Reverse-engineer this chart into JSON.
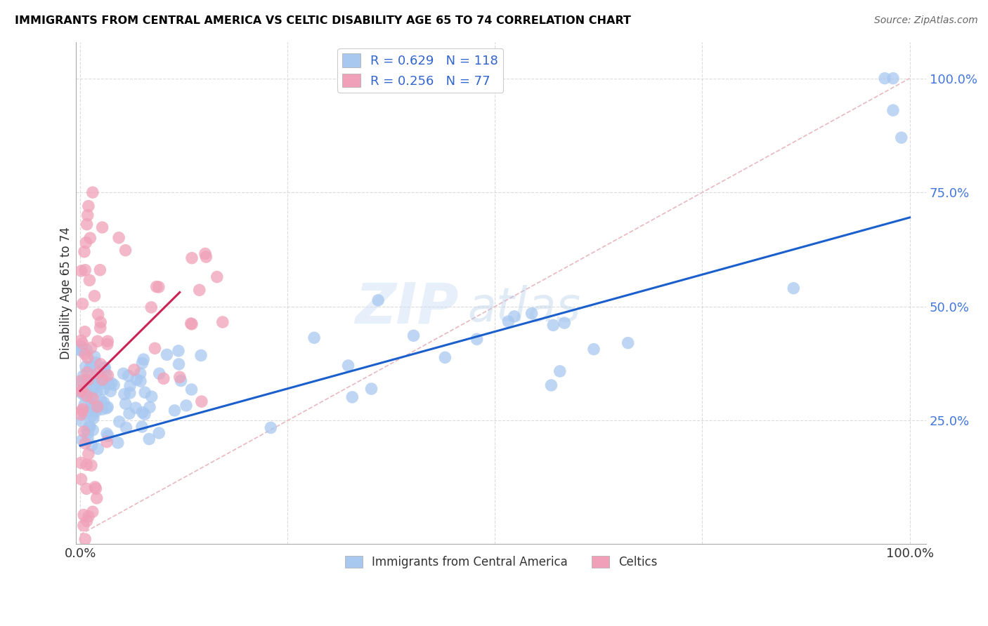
{
  "title": "IMMIGRANTS FROM CENTRAL AMERICA VS CELTIC DISABILITY AGE 65 TO 74 CORRELATION CHART",
  "source": "Source: ZipAtlas.com",
  "ylabel": "Disability Age 65 to 74",
  "legend_label_blue": "Immigrants from Central America",
  "legend_label_pink": "Celtics",
  "legend_R_blue": "R = 0.629",
  "legend_N_blue": "N = 118",
  "legend_R_pink": "R = 0.256",
  "legend_N_pink": "N = 77",
  "blue_color": "#a8c8f0",
  "pink_color": "#f0a0b8",
  "blue_line_color": "#1a5fcc",
  "pink_line_color": "#cc2255",
  "diagonal_color": "#e8b8c0",
  "watermark_zip": "ZIP",
  "watermark_atlas": "atlas",
  "background_color": "#ffffff",
  "grid_color": "#cccccc",
  "xlim": [
    -0.005,
    1.02
  ],
  "ylim": [
    -0.02,
    1.08
  ],
  "blue_intercept": 0.195,
  "blue_slope": 0.5,
  "pink_intercept": 0.315,
  "pink_slope": 1.8,
  "pink_line_xmax": 0.12
}
